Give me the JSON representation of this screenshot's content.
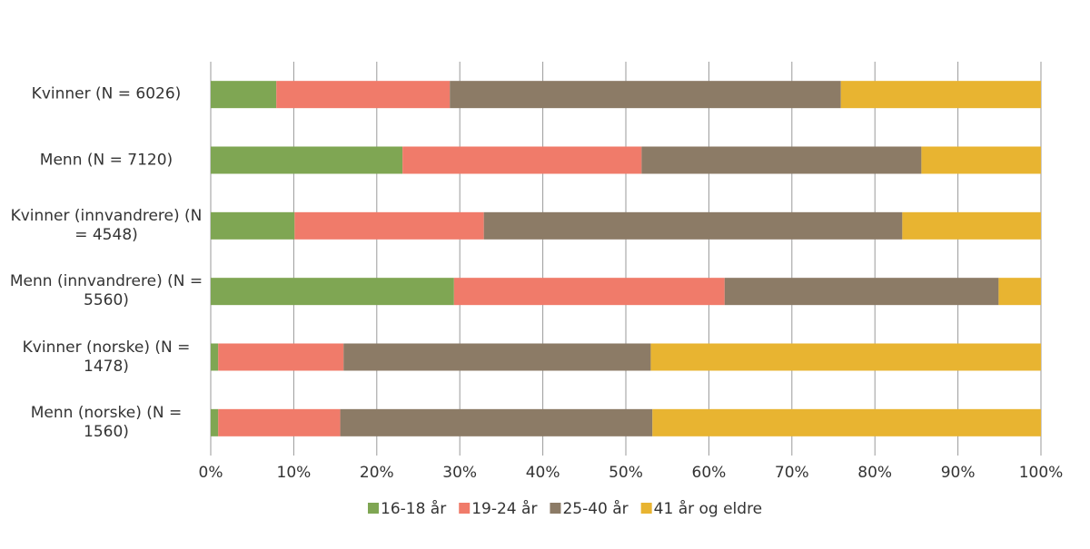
{
  "chart_data": {
    "type": "stacked-bar-horizontal",
    "categories": [
      "Kvinner (N = 6026)",
      "Menn (N = 7120)",
      "Kvinner (innvandrere) (N = 4548)",
      "Menn (innvandrere) (N = 5560)",
      "Kvinner (norske) (N = 1478)",
      "Menn (norske) (N = 1560)"
    ],
    "series": [
      {
        "name": "16-18 år",
        "color": "#7fa653",
        "values": [
          7.9,
          23.1,
          10.1,
          29.3,
          0.9,
          0.9
        ]
      },
      {
        "name": "19-24 år",
        "color": "#f07b6a",
        "values": [
          20.9,
          28.8,
          22.8,
          32.6,
          15.1,
          14.7
        ]
      },
      {
        "name": "25-40 år",
        "color": "#8c7b66",
        "values": [
          47.1,
          33.7,
          50.4,
          33.0,
          37.0,
          37.6
        ]
      },
      {
        "name": "41 år og eldre",
        "color": "#e8b431",
        "values": [
          24.1,
          14.4,
          16.7,
          5.1,
          47.0,
          46.8
        ]
      }
    ],
    "xlim": [
      0,
      100
    ],
    "xticks": [
      {
        "value": 0,
        "label": "0%"
      },
      {
        "value": 10,
        "label": "10%"
      },
      {
        "value": 20,
        "label": "20%"
      },
      {
        "value": 30,
        "label": "30%"
      },
      {
        "value": 40,
        "label": "40%"
      },
      {
        "value": 50,
        "label": "50%"
      },
      {
        "value": 60,
        "label": "60%"
      },
      {
        "value": 70,
        "label": "70%"
      },
      {
        "value": 80,
        "label": "80%"
      },
      {
        "value": 90,
        "label": "90%"
      },
      {
        "value": 100,
        "label": "100%"
      }
    ],
    "grid": true,
    "legend": "bottom"
  }
}
